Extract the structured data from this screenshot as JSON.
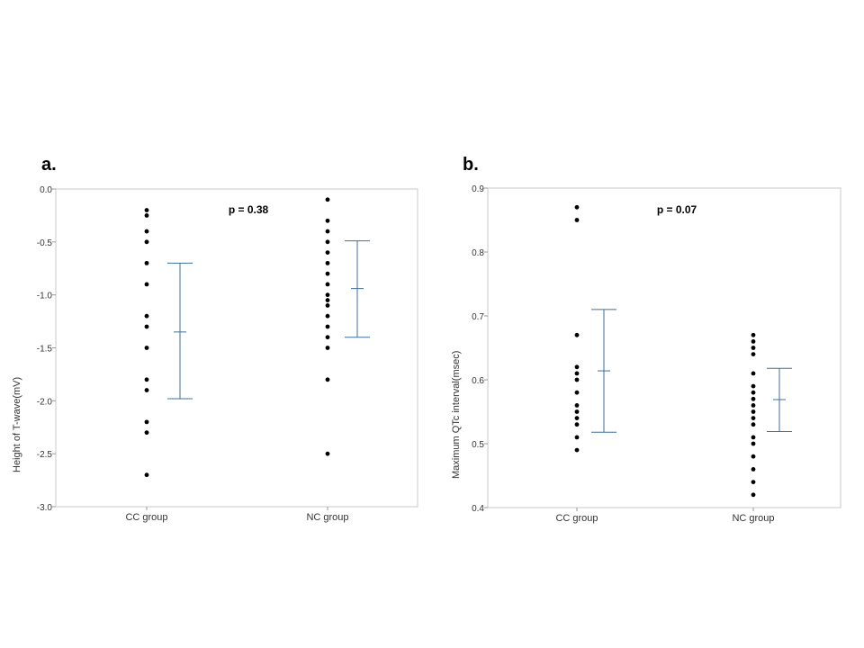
{
  "panels": [
    {
      "letter": "a."
    },
    {
      "letter": "b."
    }
  ],
  "colors": {
    "dots": "#000000",
    "error_bars": "#3f6f9a",
    "frame": "#c8c8c8",
    "text": "#333333"
  },
  "chart_data": [
    {
      "type": "scatter",
      "title": "",
      "xlabel": "",
      "ylabel": "Height of T-wave(mV)",
      "categories": [
        "CC group",
        "NC group"
      ],
      "ylim": [
        -3.0,
        0.0
      ],
      "yticks": [
        "0.0",
        "-0.5",
        "-1.0",
        "-1.5",
        "-2.0",
        "-2.5",
        "-3.0"
      ],
      "annotation": "p = 0.38",
      "grid": false,
      "series": [
        {
          "category": "CC group",
          "values": [
            -0.2,
            -0.25,
            -0.4,
            -0.5,
            -0.7,
            -0.9,
            -1.2,
            -1.3,
            -1.5,
            -1.8,
            -1.9,
            -2.2,
            -2.3,
            -2.7
          ],
          "mean": -1.35,
          "sd_low": -1.98,
          "sd_high": -0.7
        },
        {
          "category": "NC group",
          "values": [
            -0.1,
            -0.3,
            -0.4,
            -0.5,
            -0.6,
            -0.7,
            -0.8,
            -0.9,
            -1.0,
            -1.05,
            -1.1,
            -1.2,
            -1.3,
            -1.4,
            -1.5,
            -1.8,
            -2.5
          ],
          "mean": -0.94,
          "sd_low": -1.4,
          "sd_high": -0.49
        }
      ]
    },
    {
      "type": "scatter",
      "title": "",
      "xlabel": "",
      "ylabel": "Maximum QTc interval(msec)",
      "categories": [
        "CC group",
        "NC group"
      ],
      "ylim": [
        0.4,
        0.9
      ],
      "yticks": [
        "0.9",
        "0.8",
        "0.7",
        "0.6",
        "0.5",
        "0.4"
      ],
      "annotation": "p = 0.07",
      "grid": false,
      "series": [
        {
          "category": "CC group",
          "values": [
            0.87,
            0.85,
            0.67,
            0.62,
            0.61,
            0.6,
            0.58,
            0.56,
            0.55,
            0.54,
            0.53,
            0.51,
            0.49
          ],
          "mean": 0.614,
          "sd_low": 0.518,
          "sd_high": 0.71
        },
        {
          "category": "NC group",
          "values": [
            0.67,
            0.66,
            0.65,
            0.64,
            0.61,
            0.59,
            0.58,
            0.57,
            0.56,
            0.55,
            0.54,
            0.53,
            0.51,
            0.5,
            0.48,
            0.46,
            0.44,
            0.42
          ],
          "mean": 0.569,
          "sd_low": 0.519,
          "sd_high": 0.618
        }
      ]
    }
  ]
}
